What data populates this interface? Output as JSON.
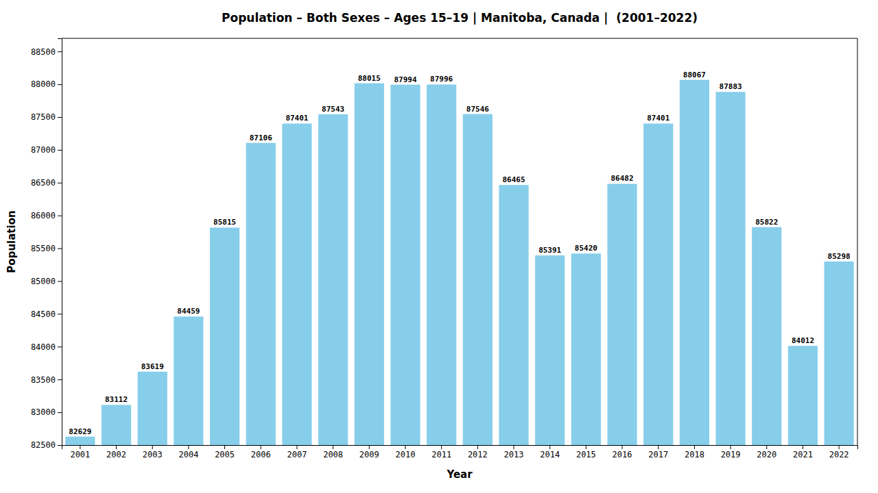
{
  "chart_data": {
    "type": "bar",
    "title": "Population – Both Sexes – Ages 15–19 | Manitoba, Canada |  (2001–2022)",
    "xlabel": "Year",
    "ylabel": "Population",
    "categories": [
      "2001",
      "2002",
      "2003",
      "2004",
      "2005",
      "2006",
      "2007",
      "2008",
      "2009",
      "2010",
      "2011",
      "2012",
      "2013",
      "2014",
      "2015",
      "2016",
      "2017",
      "2018",
      "2019",
      "2020",
      "2021",
      "2022"
    ],
    "values": [
      82629,
      83112,
      83619,
      84459,
      85815,
      87106,
      87401,
      87543,
      88015,
      87994,
      87996,
      87546,
      86465,
      85391,
      85420,
      86482,
      87401,
      88067,
      87883,
      85822,
      84012,
      85298
    ],
    "color": "#87CEEB",
    "ylim": [
      82500,
      88700
    ],
    "yticks": [
      82500,
      83000,
      83500,
      84000,
      84500,
      85000,
      85500,
      86000,
      86500,
      87000,
      87500,
      88000,
      88500
    ],
    "grid": false,
    "data_labels": true
  }
}
